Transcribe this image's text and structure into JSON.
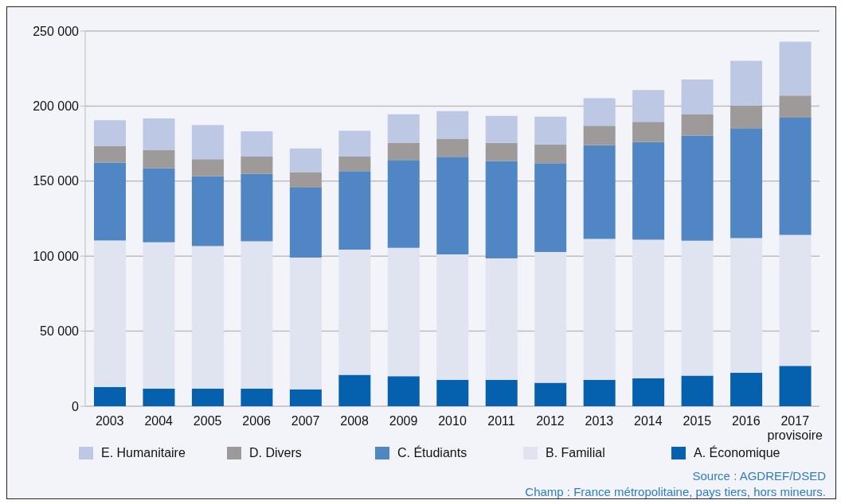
{
  "chart_data": {
    "type": "bar",
    "stacked": true,
    "categories": [
      "2003",
      "2004",
      "2005",
      "2006",
      "2007",
      "2008",
      "2009",
      "2010",
      "2011",
      "2012",
      "2013",
      "2014",
      "2015",
      "2016",
      "2017\nprovisoire"
    ],
    "series": [
      {
        "name": "A. Économique",
        "color": "#0561ad",
        "values": [
          12900,
          11800,
          11800,
          11800,
          11200,
          20900,
          20000,
          17600,
          17600,
          15600,
          17600,
          18700,
          20400,
          22400,
          26900
        ]
      },
      {
        "name": "B. Familial",
        "color": "#e0e4f0",
        "values": [
          97500,
          97500,
          94900,
          98100,
          87800,
          83500,
          85600,
          83500,
          80900,
          87100,
          93900,
          92200,
          89900,
          89600,
          87300
        ]
      },
      {
        "name": "C. Étudiants",
        "color": "#5186c5",
        "values": [
          52000,
          49300,
          46500,
          45000,
          46600,
          52200,
          58400,
          65100,
          64900,
          59200,
          62300,
          65100,
          70000,
          73300,
          78100
        ]
      },
      {
        "name": "D. Divers",
        "color": "#9d9a99",
        "values": [
          10800,
          12000,
          11400,
          11400,
          10400,
          9700,
          11600,
          12000,
          12000,
          12400,
          13100,
          13500,
          14100,
          15000,
          14700
        ]
      },
      {
        "name": "E. Humanitaire",
        "color": "#bcc8e4",
        "values": [
          17400,
          21100,
          22800,
          16800,
          15700,
          17200,
          18900,
          18400,
          18000,
          18600,
          18400,
          21200,
          23300,
          29900,
          35800
        ]
      }
    ],
    "ylim": [
      0,
      250000
    ],
    "yticks": [
      {
        "value": 0,
        "label": "0"
      },
      {
        "value": 50000,
        "label": "50 000"
      },
      {
        "value": 100000,
        "label": "100 000"
      },
      {
        "value": 150000,
        "label": "150 000"
      },
      {
        "value": 200000,
        "label": "200 000"
      },
      {
        "value": 250000,
        "label": "250 000"
      }
    ],
    "grid": "y",
    "legend": "bottom left",
    "annotations": [
      "Source : AGDREF/DSED",
      "Champ : France métropolitaine, pays tiers, hors mineurs."
    ]
  }
}
